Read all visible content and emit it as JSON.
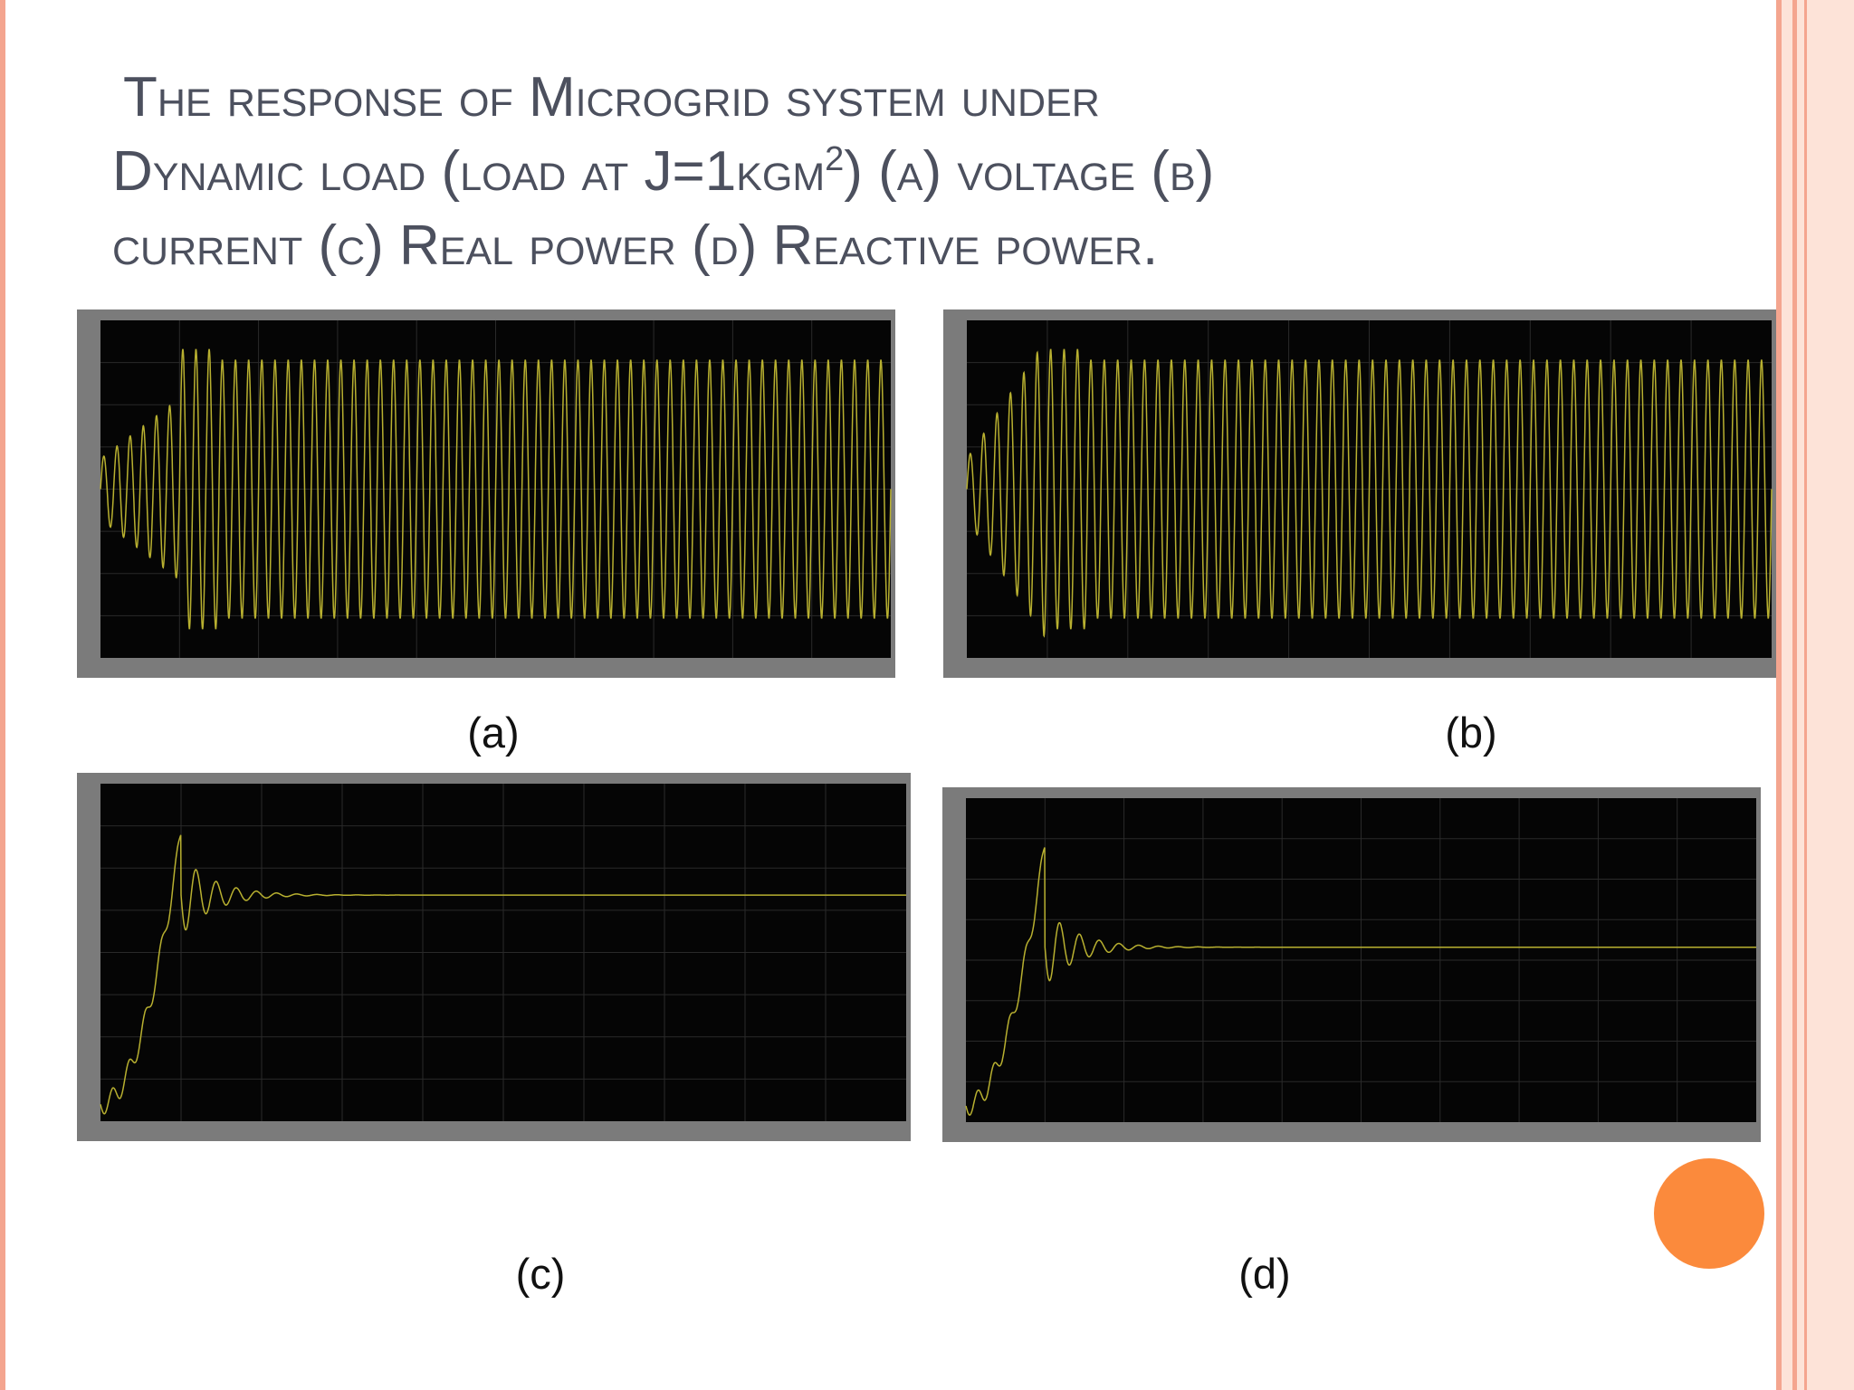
{
  "slide": {
    "title": {
      "line1": "The response of Microgrid system under",
      "line2": "Dynamic load (load at J=1kgm",
      "sup": "2",
      "line2_end": ") (a)  voltage (b)",
      "line3": "current (c) Real power (d) Reactive power."
    },
    "captions": [
      "(a)",
      "(b)",
      "(c)",
      "(d)"
    ]
  }
}
